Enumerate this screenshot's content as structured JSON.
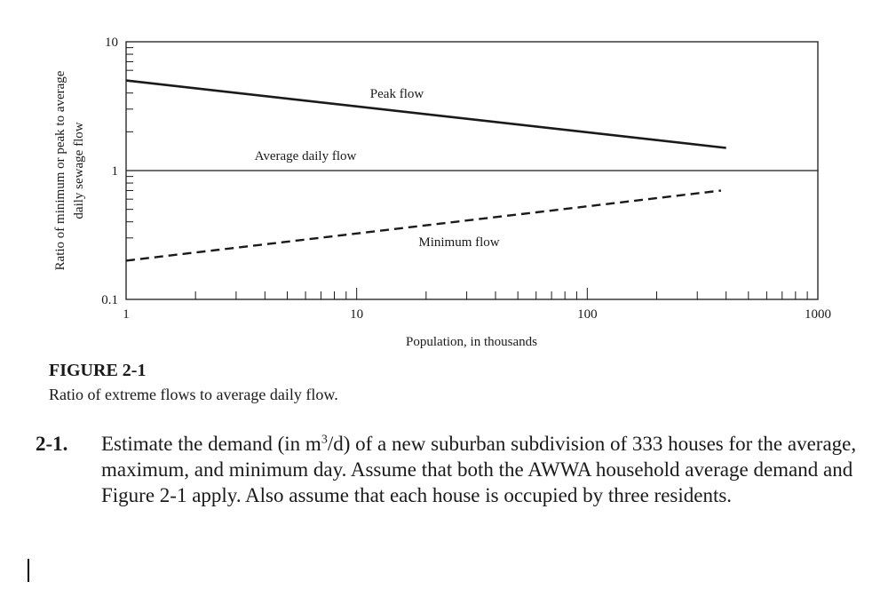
{
  "chart_data": {
    "type": "line",
    "x_scale": "log",
    "y_scale": "log",
    "xlim": [
      1,
      1000
    ],
    "ylim": [
      0.1,
      10
    ],
    "x_tick_labels": [
      "1",
      "10",
      "100",
      "1000"
    ],
    "y_tick_labels": [
      "0.1",
      "1",
      "10"
    ],
    "xlabel": "Population, in thousands",
    "ylabel": "Ratio of minimum or peak to average daily sewage flow",
    "ylabel_line1": "Ratio of minimum or peak to average",
    "ylabel_line2": "daily sewage flow",
    "grid": false,
    "series": [
      {
        "name": "Peak flow",
        "style": "solid-thick",
        "x": [
          1,
          400
        ],
        "y": [
          5.0,
          1.5
        ]
      },
      {
        "name": "Average daily flow",
        "style": "solid-thin",
        "x": [
          1,
          1000
        ],
        "y": [
          1,
          1
        ]
      },
      {
        "name": "Minimum flow",
        "style": "dashed",
        "x": [
          1,
          380
        ],
        "y": [
          0.2,
          0.7
        ]
      }
    ]
  },
  "figure": {
    "label": "FIGURE 2-1",
    "caption": "Ratio of extreme flows to average daily flow."
  },
  "problem": {
    "number": "2-1.",
    "text_before": "Estimate the demand (in m",
    "superscript": "3",
    "text_after": "/d) of a new suburban subdivision of 333 houses for the average, maximum, and minimum day. Assume that both the AWWA household average demand and Figure 2-1 apply. Also assume that each house is occupied by three residents."
  }
}
